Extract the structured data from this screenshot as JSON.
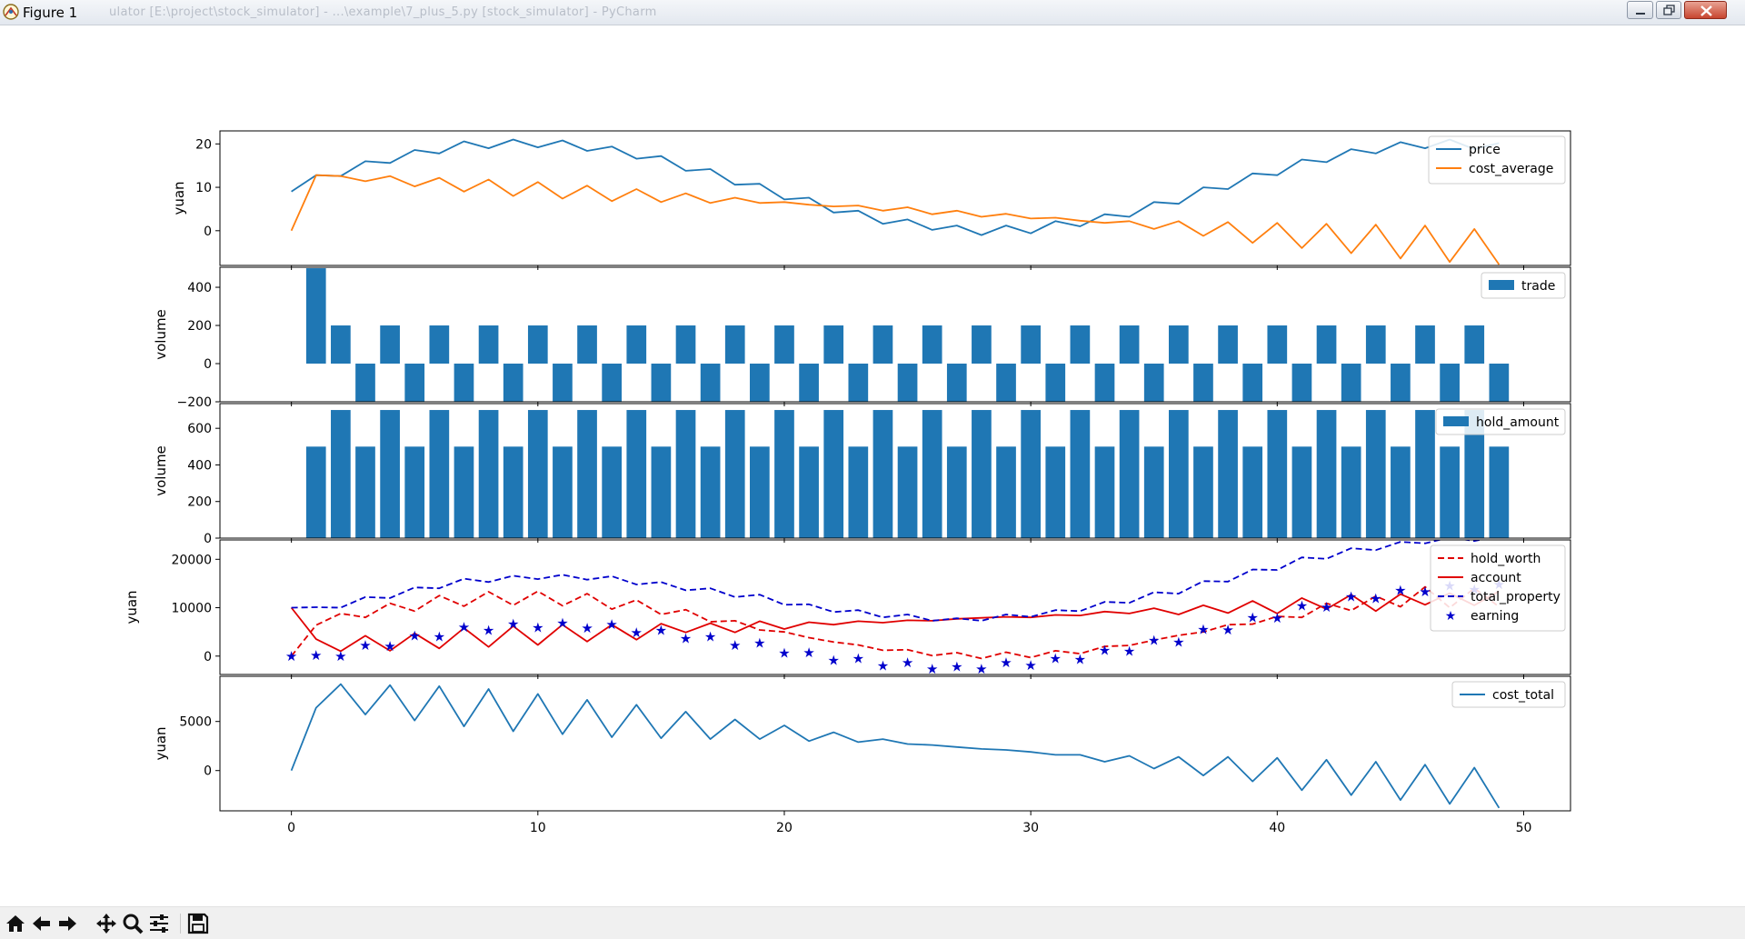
{
  "window": {
    "title": "Figure 1",
    "background_text": "ulator [E:\\project\\stock_simulator] - ...\\example\\7_plus_5.py [stock_simulator] - PyCharm"
  },
  "toolbar": {
    "buttons": [
      {
        "name": "home-icon",
        "tooltip": "Reset original view"
      },
      {
        "name": "back-arrow-icon",
        "tooltip": "Back to previous view"
      },
      {
        "name": "forward-arrow-icon",
        "tooltip": "Forward to next view"
      },
      {
        "name": "pan-icon",
        "tooltip": "Pan axes"
      },
      {
        "name": "zoom-icon",
        "tooltip": "Zoom to rectangle"
      },
      {
        "name": "configure-subplots-icon",
        "tooltip": "Configure subplots"
      },
      {
        "name": "save-icon",
        "tooltip": "Save the figure"
      }
    ]
  },
  "colors": {
    "blue": "#1f77b4",
    "orange": "#ff7f0e",
    "red": "#e00000",
    "navy": "#0000cc"
  },
  "chart_data": [
    {
      "type": "line",
      "ylabel": "yuan",
      "yticks": [
        0,
        10,
        20
      ],
      "ylim": [
        -8,
        23
      ],
      "xlim": [
        -2.9,
        51.9
      ],
      "legend": "top-right",
      "series": [
        {
          "name": "price",
          "color": "#1f77b4",
          "style": "solid",
          "x": [
            0,
            1,
            2,
            3,
            4,
            5,
            6,
            7,
            8,
            9,
            10,
            11,
            12,
            13,
            14,
            15,
            16,
            17,
            18,
            19,
            20,
            21,
            22,
            23,
            24,
            25,
            26,
            27,
            28,
            29,
            30,
            31,
            32,
            33,
            34,
            35,
            36,
            37,
            38,
            39,
            40,
            41,
            42,
            43,
            44,
            45,
            46,
            47,
            48,
            49
          ],
          "y": [
            9,
            12.8,
            12.6,
            16,
            15.6,
            18.6,
            17.8,
            20.6,
            19,
            21,
            19.2,
            20.8,
            18.4,
            19.4,
            16.6,
            17.2,
            13.8,
            14.2,
            10.6,
            10.8,
            7.2,
            7.6,
            4.2,
            4.6,
            1.6,
            2.6,
            0.2,
            1.2,
            -1,
            1.2,
            -0.6,
            2.2,
            1,
            3.8,
            3.2,
            6.6,
            6.2,
            10,
            9.6,
            13.2,
            12.8,
            16.4,
            15.8,
            18.8,
            17.8,
            20.4,
            19,
            21,
            18.8,
            20.2
          ]
        },
        {
          "name": "cost_average",
          "color": "#ff7f0e",
          "style": "solid",
          "x": [
            0,
            1,
            2,
            3,
            4,
            5,
            6,
            7,
            8,
            9,
            10,
            11,
            12,
            13,
            14,
            15,
            16,
            17,
            18,
            19,
            20,
            21,
            22,
            23,
            24,
            25,
            26,
            27,
            28,
            29,
            30,
            31,
            32,
            33,
            34,
            35,
            36,
            37,
            38,
            39,
            40,
            41,
            42,
            43,
            44,
            45,
            46,
            47,
            48,
            49
          ],
          "y": [
            0,
            12.8,
            12.6,
            11.4,
            12.6,
            10.2,
            12.2,
            9,
            11.8,
            8,
            11.2,
            7.4,
            10.4,
            6.8,
            9.6,
            6.6,
            8.6,
            6.4,
            7.6,
            6.4,
            6.6,
            6,
            5.6,
            5.8,
            4.6,
            5.4,
            3.8,
            4.6,
            3.2,
            3.9,
            2.8,
            3,
            2.3,
            1.8,
            2.2,
            0.4,
            2.2,
            -1.2,
            2,
            -2.8,
            1.8,
            -4,
            1.6,
            -5.2,
            1.4,
            -6.4,
            1.2,
            -7.2,
            0.4,
            -7.8
          ]
        }
      ]
    },
    {
      "type": "bar",
      "ylabel": "volume",
      "yticks": [
        -200,
        0,
        200,
        400
      ],
      "ylim": [
        -200,
        505
      ],
      "xlim": [
        -2.9,
        51.9
      ],
      "legend": "top-right",
      "series": [
        {
          "name": "trade",
          "color": "#1f77b4",
          "x": [
            1,
            2,
            3,
            4,
            5,
            6,
            7,
            8,
            9,
            10,
            11,
            12,
            13,
            14,
            15,
            16,
            17,
            18,
            19,
            20,
            21,
            22,
            23,
            24,
            25,
            26,
            27,
            28,
            29,
            30,
            31,
            32,
            33,
            34,
            35,
            36,
            37,
            38,
            39,
            40,
            41,
            42,
            43,
            44,
            45,
            46,
            47,
            48,
            49
          ],
          "values": [
            500,
            200,
            -200,
            200,
            -200,
            200,
            -200,
            200,
            -200,
            200,
            -200,
            200,
            -200,
            200,
            -200,
            200,
            -200,
            200,
            -200,
            200,
            -200,
            200,
            -200,
            200,
            -200,
            200,
            -200,
            200,
            -200,
            200,
            -200,
            200,
            -200,
            200,
            -200,
            200,
            -200,
            200,
            -200,
            200,
            -200,
            200,
            -200,
            200,
            -200,
            200,
            -200,
            200,
            -200
          ]
        }
      ]
    },
    {
      "type": "bar",
      "ylabel": "volume",
      "yticks": [
        0,
        200,
        400,
        600
      ],
      "ylim": [
        0,
        735
      ],
      "xlim": [
        -2.9,
        51.9
      ],
      "legend": "top-right",
      "series": [
        {
          "name": "hold_amount",
          "color": "#1f77b4",
          "x": [
            1,
            2,
            3,
            4,
            5,
            6,
            7,
            8,
            9,
            10,
            11,
            12,
            13,
            14,
            15,
            16,
            17,
            18,
            19,
            20,
            21,
            22,
            23,
            24,
            25,
            26,
            27,
            28,
            29,
            30,
            31,
            32,
            33,
            34,
            35,
            36,
            37,
            38,
            39,
            40,
            41,
            42,
            43,
            44,
            45,
            46,
            47,
            48,
            49
          ],
          "values": [
            500,
            700,
            500,
            700,
            500,
            700,
            500,
            700,
            500,
            700,
            500,
            700,
            500,
            700,
            500,
            700,
            500,
            700,
            500,
            700,
            500,
            700,
            500,
            700,
            500,
            700,
            500,
            700,
            500,
            700,
            500,
            700,
            500,
            700,
            500,
            700,
            500,
            700,
            500,
            700,
            500,
            700,
            500,
            700,
            500,
            700,
            500,
            700,
            500
          ]
        }
      ]
    },
    {
      "type": "line",
      "ylabel": "yuan",
      "yticks": [
        0,
        10000,
        20000
      ],
      "ylim": [
        -3800,
        24000
      ],
      "xlim": [
        -2.9,
        51.9
      ],
      "legend": "top-right",
      "series": [
        {
          "name": "hold_worth",
          "color": "#e00000",
          "style": "dashed",
          "x": [
            0,
            1,
            2,
            3,
            4,
            5,
            6,
            7,
            8,
            9,
            10,
            11,
            12,
            13,
            14,
            15,
            16,
            17,
            18,
            19,
            20,
            21,
            22,
            23,
            24,
            25,
            26,
            27,
            28,
            29,
            30,
            31,
            32,
            33,
            34,
            35,
            36,
            37,
            38,
            39,
            40,
            41,
            42,
            43,
            44,
            45,
            46,
            47,
            48,
            49
          ],
          "y": [
            0,
            6400,
            8800,
            8000,
            10900,
            9300,
            12500,
            10300,
            13300,
            10500,
            13400,
            10400,
            12900,
            9700,
            11600,
            8600,
            9600,
            7100,
            7300,
            5400,
            5000,
            3800,
            2900,
            2300,
            1200,
            1300,
            100,
            700,
            -500,
            800,
            -300,
            1100,
            500,
            2000,
            2200,
            3300,
            4300,
            5000,
            6500,
            6600,
            8200,
            8000,
            10900,
            9400,
            12400,
            10200,
            14300,
            10000,
            14000,
            10200
          ]
        },
        {
          "name": "account",
          "color": "#e00000",
          "style": "solid",
          "x": [
            0,
            1,
            2,
            3,
            4,
            5,
            6,
            7,
            8,
            9,
            10,
            11,
            12,
            13,
            14,
            15,
            16,
            17,
            18,
            19,
            20,
            21,
            22,
            23,
            24,
            25,
            26,
            27,
            28,
            29,
            30,
            31,
            32,
            33,
            34,
            35,
            36,
            37,
            38,
            39,
            40,
            41,
            42,
            43,
            44,
            45,
            46,
            47,
            48,
            49
          ],
          "y": [
            10000,
            3500,
            1000,
            4200,
            1100,
            4700,
            1600,
            5800,
            1900,
            6200,
            2300,
            6500,
            3000,
            6500,
            3400,
            6700,
            4900,
            6800,
            4900,
            7200,
            5600,
            7000,
            6500,
            7200,
            6900,
            7400,
            7300,
            7700,
            7900,
            8100,
            8000,
            8500,
            8400,
            9200,
            8800,
            9900,
            8600,
            10500,
            8900,
            11400,
            8800,
            12000,
            9700,
            12700,
            9300,
            12800,
            10600,
            13000,
            10500,
            13400
          ]
        },
        {
          "name": "total_property",
          "color": "#0000cc",
          "style": "dashed",
          "x": [
            0,
            1,
            2,
            3,
            4,
            5,
            6,
            7,
            8,
            9,
            10,
            11,
            12,
            13,
            14,
            15,
            16,
            17,
            18,
            19,
            20,
            21,
            22,
            23,
            24,
            25,
            26,
            27,
            28,
            29,
            30,
            31,
            32,
            33,
            34,
            35,
            36,
            37,
            38,
            39,
            40,
            41,
            42,
            43,
            44,
            45,
            46,
            47,
            48,
            49
          ],
          "y": [
            10000,
            10100,
            10000,
            12200,
            12000,
            14200,
            14000,
            16000,
            15300,
            16600,
            15900,
            16800,
            15800,
            16500,
            14800,
            15300,
            13600,
            14000,
            12200,
            12700,
            10600,
            10700,
            9100,
            9500,
            8000,
            8600,
            7300,
            7800,
            7300,
            8600,
            8100,
            9500,
            9300,
            11200,
            11000,
            13200,
            12900,
            15500,
            15400,
            17900,
            17800,
            20400,
            20100,
            22300,
            21900,
            23600,
            23300,
            24500,
            23800,
            24800
          ]
        },
        {
          "name": "earning",
          "color": "#0000cc",
          "style": "marker-star",
          "x": [
            0,
            1,
            2,
            3,
            4,
            5,
            6,
            7,
            8,
            9,
            10,
            11,
            12,
            13,
            14,
            15,
            16,
            17,
            18,
            19,
            20,
            21,
            22,
            23,
            24,
            25,
            26,
            27,
            28,
            29,
            30,
            31,
            32,
            33,
            34,
            35,
            36,
            37,
            38,
            39,
            40,
            41,
            42,
            43,
            44,
            45,
            46,
            47,
            48,
            49
          ],
          "y": [
            0,
            100,
            0,
            2200,
            2000,
            4200,
            4000,
            6000,
            5300,
            6600,
            5900,
            6800,
            5800,
            6500,
            4800,
            5300,
            3600,
            4000,
            2200,
            2700,
            600,
            700,
            -900,
            -500,
            -2000,
            -1400,
            -2700,
            -2200,
            -2700,
            -1400,
            -1900,
            -500,
            -700,
            1200,
            1000,
            3200,
            2900,
            5500,
            5400,
            7900,
            7800,
            10400,
            10100,
            12300,
            11900,
            13600,
            13300,
            14500,
            13800,
            14800
          ]
        }
      ]
    },
    {
      "type": "line",
      "ylabel": "yuan",
      "yticks": [
        0,
        5000
      ],
      "ylim": [
        -4100,
        9600
      ],
      "xlim": [
        -2.9,
        51.9
      ],
      "xticks": [
        0,
        10,
        20,
        30,
        40,
        50
      ],
      "legend": "top-right",
      "series": [
        {
          "name": "cost_total",
          "color": "#1f77b4",
          "style": "solid",
          "x": [
            0,
            1,
            2,
            3,
            4,
            5,
            6,
            7,
            8,
            9,
            10,
            11,
            12,
            13,
            14,
            15,
            16,
            17,
            18,
            19,
            20,
            21,
            22,
            23,
            24,
            25,
            26,
            27,
            28,
            29,
            30,
            31,
            32,
            33,
            34,
            35,
            36,
            37,
            38,
            39,
            40,
            41,
            42,
            43,
            44,
            45,
            46,
            47,
            48,
            49
          ],
          "y": [
            0,
            6400,
            8800,
            5700,
            8700,
            5100,
            8600,
            4500,
            8300,
            4000,
            7800,
            3700,
            7200,
            3400,
            6700,
            3300,
            6000,
            3200,
            5200,
            3200,
            4600,
            3000,
            3900,
            2900,
            3200,
            2700,
            2600,
            2400,
            2200,
            2100,
            1900,
            1600,
            1600,
            900,
            1500,
            200,
            1400,
            -500,
            1400,
            -1100,
            1300,
            -2000,
            1100,
            -2500,
            900,
            -3000,
            600,
            -3400,
            300,
            -3800
          ]
        }
      ]
    }
  ]
}
